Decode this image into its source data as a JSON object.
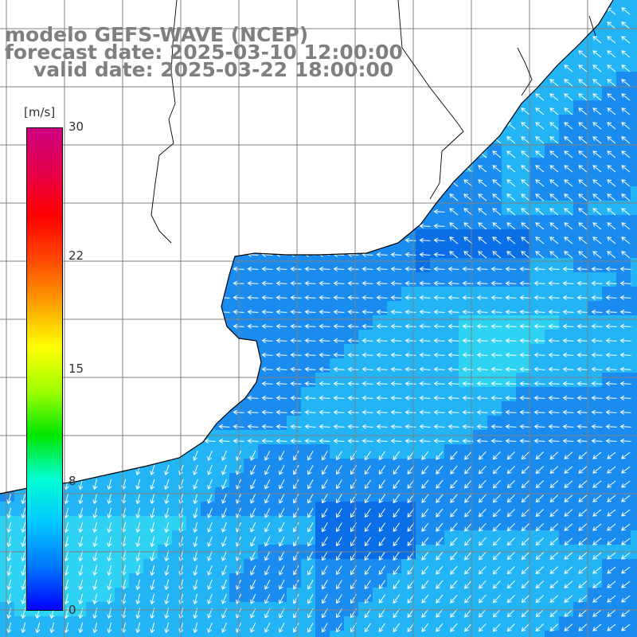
{
  "title": {
    "line1": "modelo GEFS-WAVE (NCEP)",
    "line2": "forecast date: 2025-03-10 12:00:00",
    "line3": "valid date: 2025-03-22 18:00:00"
  },
  "colorbar": {
    "units": "[m/s]",
    "ticks": [
      {
        "value": 30,
        "label": "30"
      },
      {
        "value": 22,
        "label": "22"
      },
      {
        "value": 15,
        "label": "15"
      },
      {
        "value": 8,
        "label": "8"
      },
      {
        "value": 0,
        "label": "0"
      }
    ],
    "gradient": [
      "#0000ff",
      "#0078ff",
      "#00c8ff",
      "#00ffd2",
      "#00e600",
      "#a0ff00",
      "#ffff00",
      "#ffa000",
      "#ff4800",
      "#ff0000",
      "#e6004c",
      "#cc0080"
    ]
  },
  "colors": {
    "land": "#ffffff",
    "grid": "#808080",
    "coast": "#000000",
    "arrow": "#ffffff",
    "title_text": "#7f7f7f",
    "field_deep": "#0a6ee6",
    "field_mid": "#1a8cf0",
    "field_light": "#22b4f4",
    "field_cyan": "#2ed2f2"
  }
}
